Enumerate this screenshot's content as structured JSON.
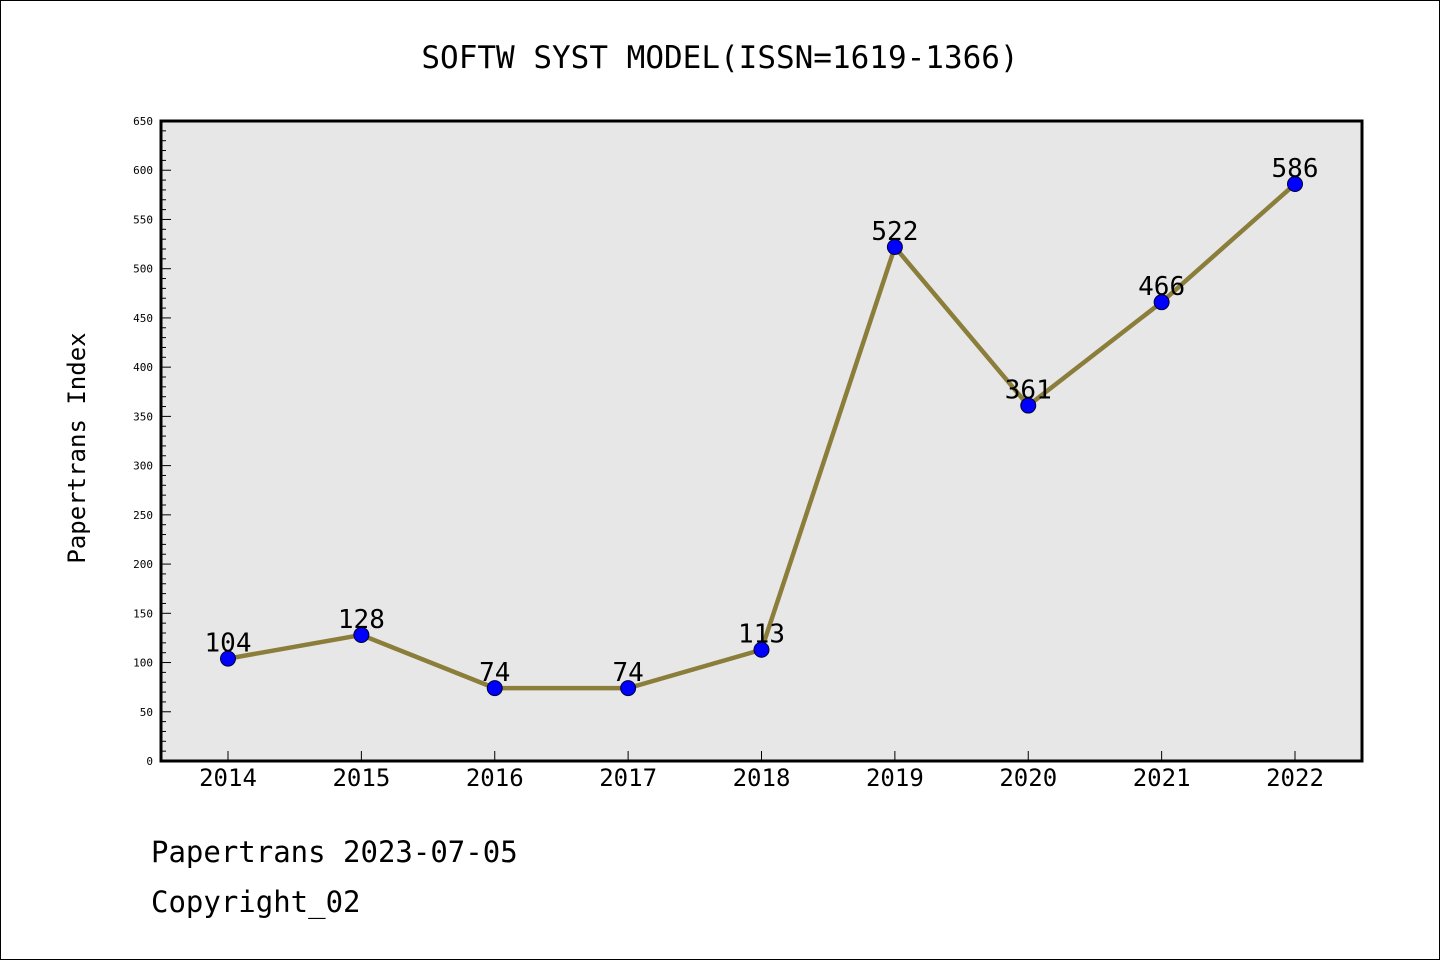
{
  "chart_data": {
    "type": "line",
    "title": "SOFTW SYST MODEL(ISSN=1619-1366)",
    "ylabel": "Papertrans Index",
    "xlabel": "",
    "categories": [
      "2014",
      "2015",
      "2016",
      "2017",
      "2018",
      "2019",
      "2020",
      "2021",
      "2022"
    ],
    "series": [
      {
        "values": [
          104,
          128,
          74,
          74,
          113,
          522,
          361,
          466,
          586
        ]
      }
    ],
    "ylim": [
      0,
      650
    ],
    "yticks": [
      0,
      50,
      100,
      150,
      200,
      250,
      300,
      350,
      400,
      450,
      500,
      550,
      600,
      650
    ],
    "grid": false,
    "line_color": "#8B7D3A",
    "marker_color": "#0000FF",
    "plot_background": "#E7E7E7"
  },
  "footer": {
    "line1": "Papertrans 2023-07-05",
    "line2": "Copyright_02"
  }
}
